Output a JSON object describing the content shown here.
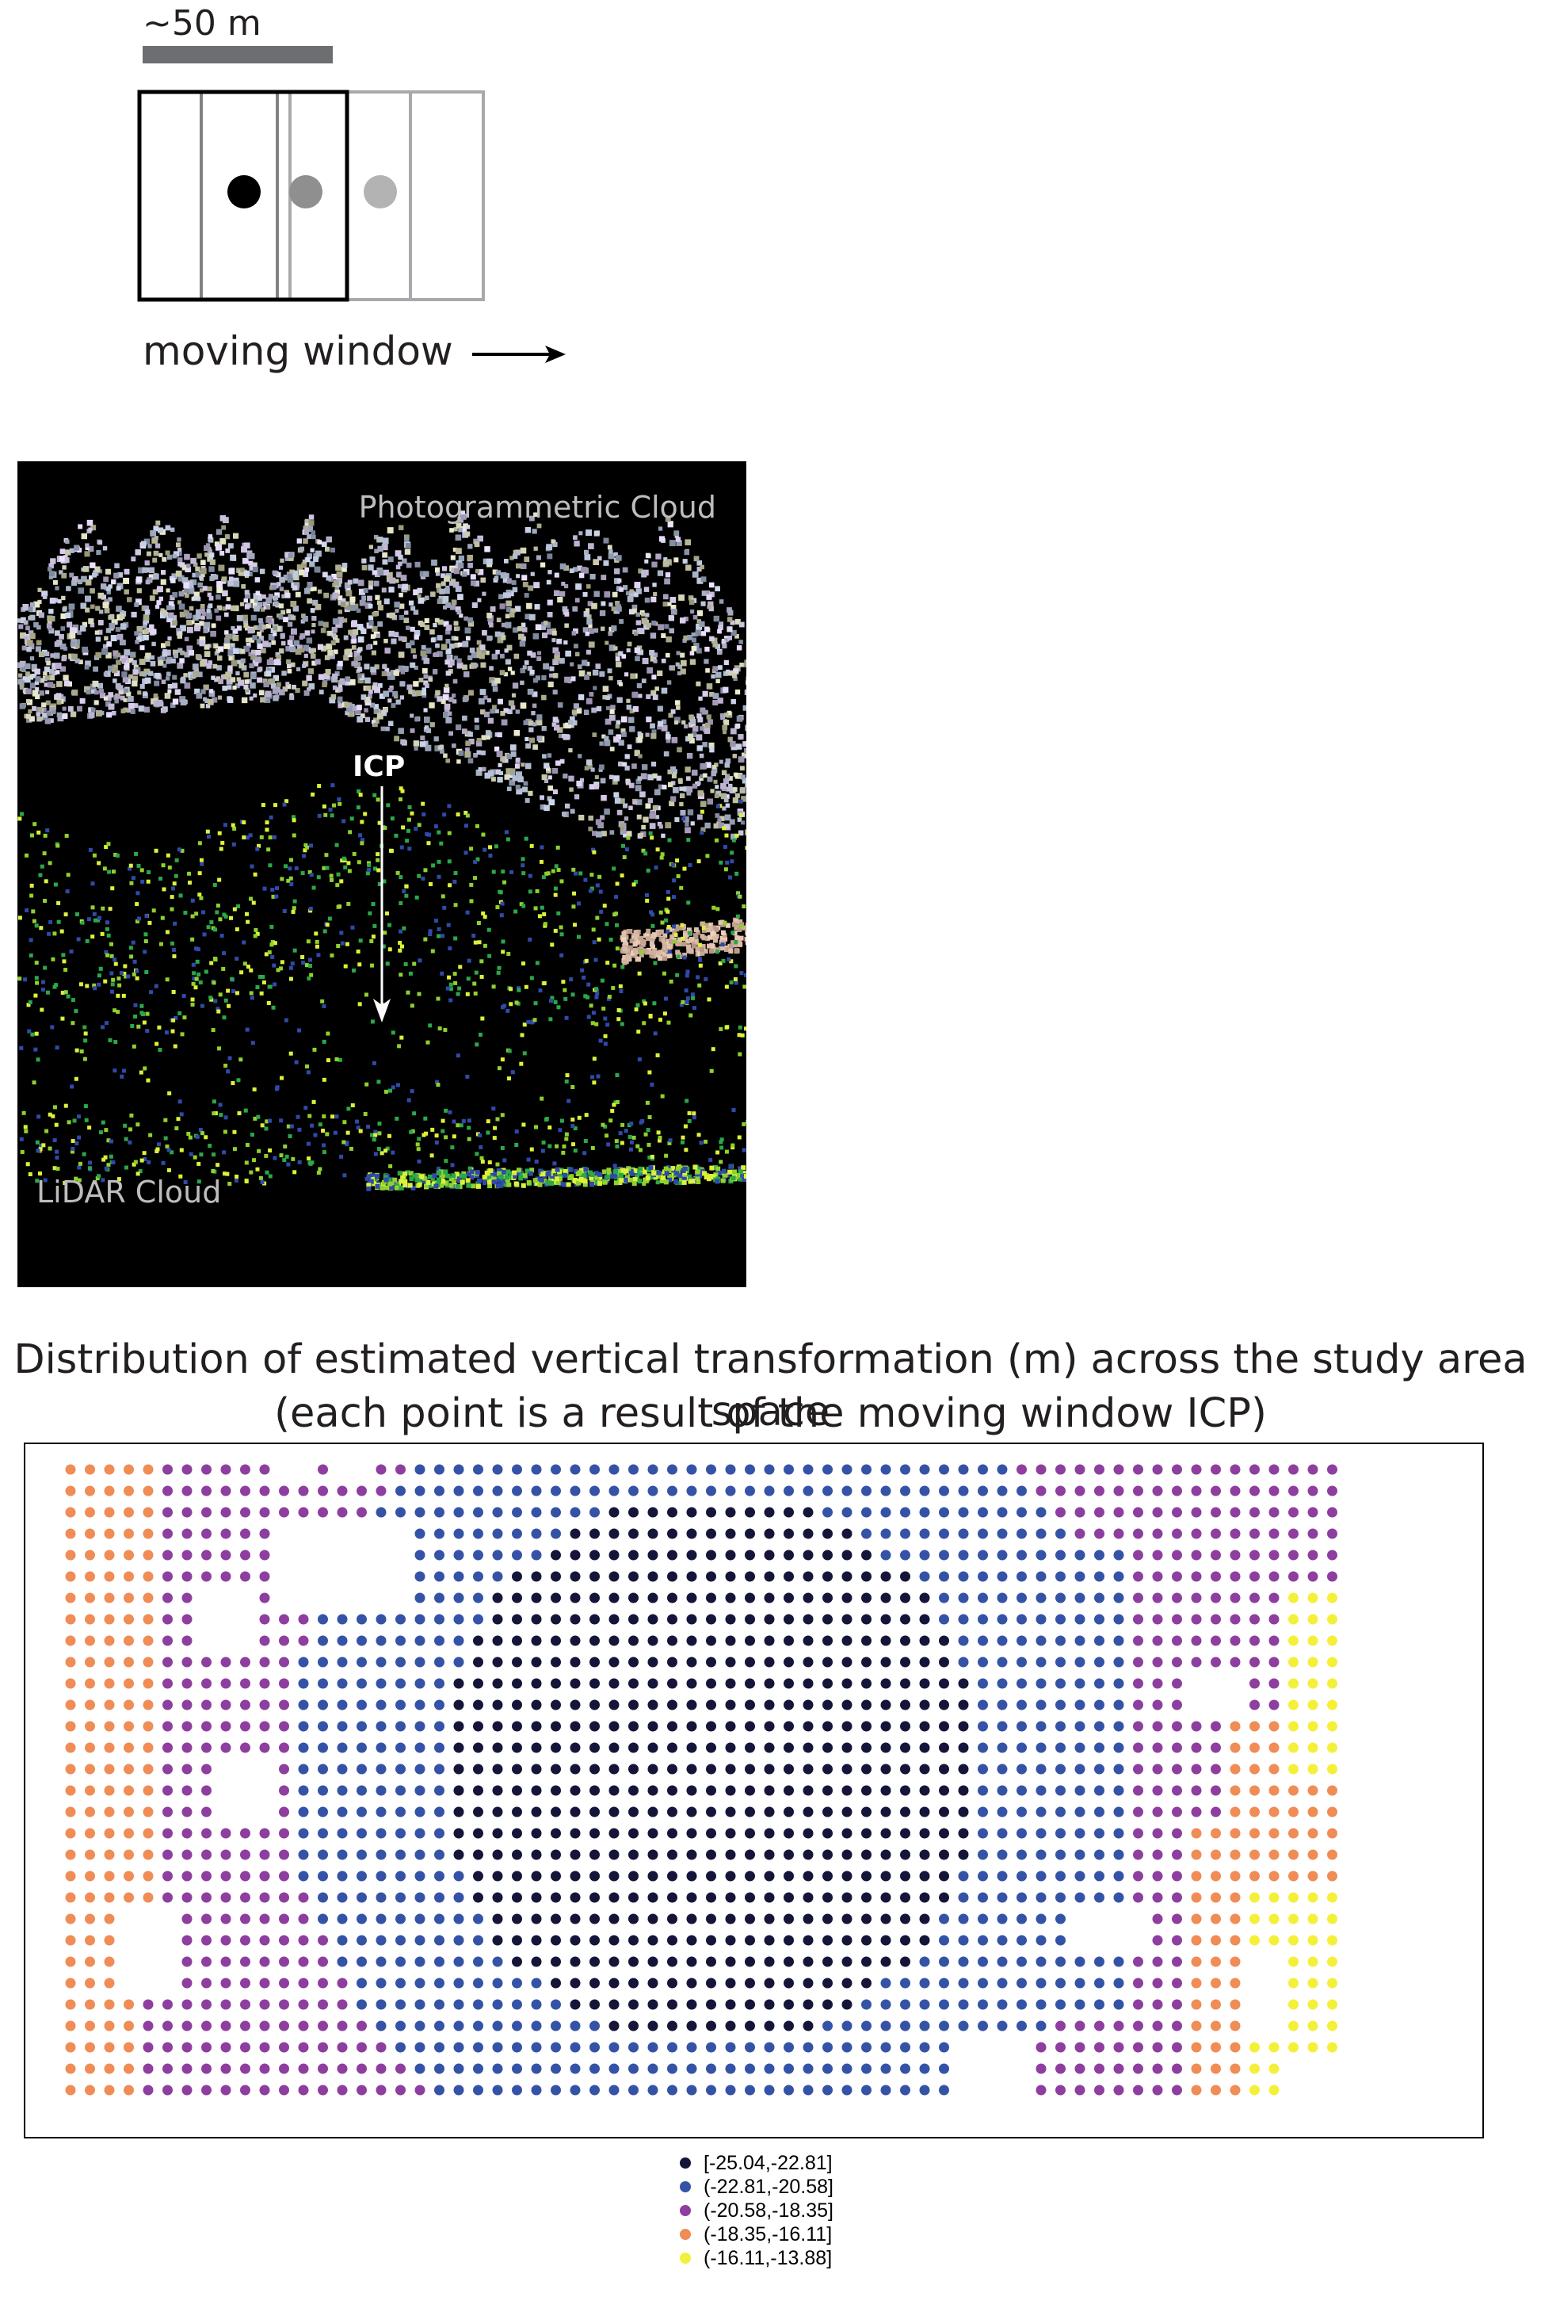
{
  "moving_window_diagram": {
    "scale_label": "~50 m",
    "caption": "moving window",
    "arrow_icon": "right-arrow-icon",
    "point_colors": [
      "#000000",
      "#8f8f8f",
      "#b3b3b3"
    ]
  },
  "point_cloud_panel": {
    "top_label": "Photogrammetric Cloud",
    "bottom_label": "LiDAR Cloud",
    "arrow_label": "ICP",
    "background_color": "#000000",
    "lidar_colors": [
      "#2f4aa8",
      "#8fd12f",
      "#dcf23a",
      "#2aa84a"
    ]
  },
  "map": {
    "title_line_1": "Distribution of estimated vertical transformation (m) across the study area space",
    "title_line_2": "(each point is a result of the moving window ICP)",
    "legend": [
      {
        "label": "[-25.04,-22.81]",
        "color": "#15153a"
      },
      {
        "label": "(-22.81,-20.58]",
        "color": "#3553a6"
      },
      {
        "label": "(-20.58,-18.35]",
        "color": "#8e3e9e"
      },
      {
        "label": "(-18.35,-16.11]",
        "color": "#f08c55"
      },
      {
        "label": "(-16.11,-13.88]",
        "color": "#f4f03a"
      }
    ]
  }
}
